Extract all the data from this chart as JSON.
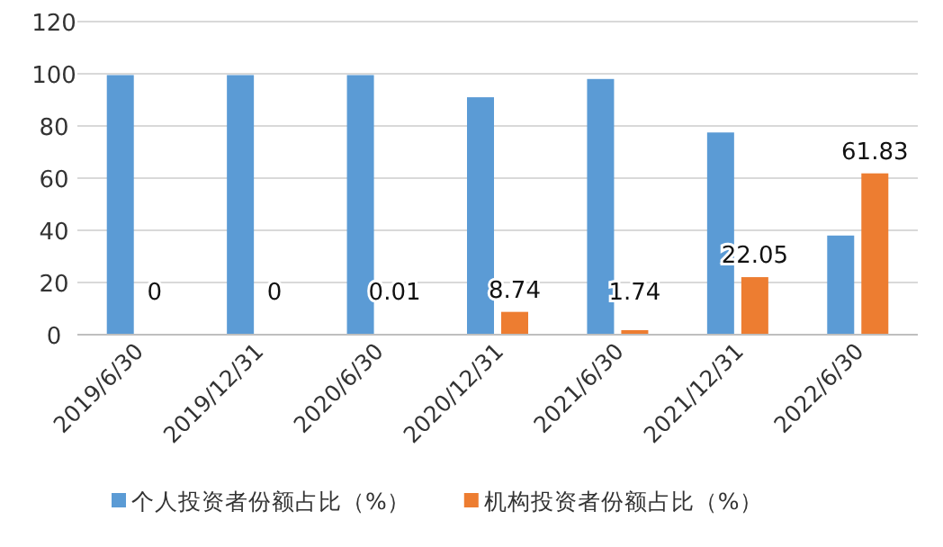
{
  "chart_data": {
    "type": "bar",
    "categories": [
      "2019/6/30",
      "2019/12/31",
      "2020/6/30",
      "2020/12/31",
      "2021/6/30",
      "2021/12/31",
      "2022/6/30"
    ],
    "series": [
      {
        "name": "个人投资者份额占比（%）",
        "color": "#5b9bd5",
        "values": [
          99.5,
          99.5,
          99.5,
          91,
          98,
          77.5,
          38
        ]
      },
      {
        "name": "机构投资者份额占比（%）",
        "color": "#ed7d31",
        "values": [
          0,
          0,
          0.01,
          8.74,
          1.74,
          22.05,
          61.83
        ],
        "value_labels": [
          "0",
          "0",
          "0.01",
          "8.74",
          "1.74",
          "22.05",
          "61.83"
        ]
      }
    ],
    "ylim": [
      0,
      120
    ],
    "yticks": [
      0,
      20,
      40,
      60,
      80,
      100,
      120
    ],
    "grid": "y",
    "legend": "bottom"
  }
}
